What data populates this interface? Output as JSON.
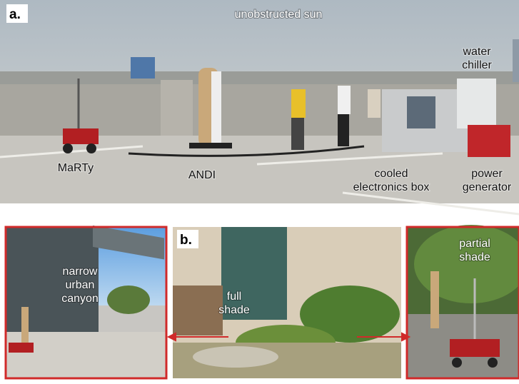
{
  "panel_a": {
    "tag": "a.",
    "labels": [
      {
        "lines": [
          "unobstructed sun"
        ]
      },
      {
        "lines": [
          "water",
          "chiller"
        ]
      },
      {
        "lines": [
          "MaRTy"
        ]
      },
      {
        "lines": [
          "ANDI"
        ]
      },
      {
        "lines": [
          "cooled",
          "electronics box"
        ]
      },
      {
        "lines": [
          "power",
          "generator"
        ]
      }
    ]
  },
  "panel_b": {
    "tag": "b.",
    "labels": [
      {
        "lines": [
          "narrow",
          "urban",
          "canyon"
        ]
      },
      {
        "lines": [
          "full",
          "shade"
        ]
      },
      {
        "lines": [
          "partial",
          "shade"
        ]
      }
    ]
  }
}
